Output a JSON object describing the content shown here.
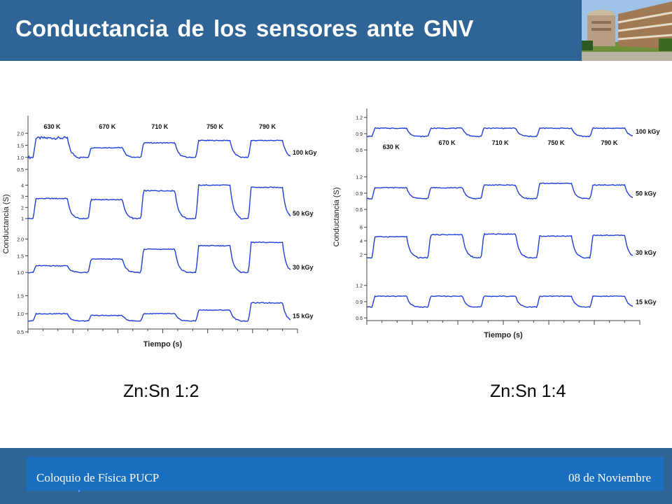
{
  "slide": {
    "title": "Conductancia de los sensores ante GNV",
    "footer_left": "Coloquio de Física PUCP",
    "footer_right": "08 de Noviembre",
    "photo_icon": "building-photo",
    "colors": {
      "header": "#2f6496",
      "footer_bar": "#1a6fc0",
      "trace": "#1f3fd8"
    }
  },
  "chart_data": [
    {
      "type": "line",
      "caption": "Zn:Sn 1:2",
      "xlabel": "Tiempo (s)",
      "ylabel": "Conductancia (S)",
      "temperatures": [
        "630 K",
        "670 K",
        "710 K",
        "750 K",
        "790 K"
      ],
      "panels": [
        {
          "name": "100 kGy",
          "ticks": [
            "2.0",
            "1.5",
            "1.0",
            "0.5"
          ],
          "tick_values": [
            2.0,
            1.5,
            1.0,
            0.5
          ],
          "ylim": [
            0.5,
            2.3
          ],
          "baseline": 1.0,
          "peaks": [
            1.8,
            1.4,
            1.6,
            1.7,
            1.7
          ]
        },
        {
          "name": "50 kGy",
          "ticks": [
            "4",
            "3",
            "2",
            "1"
          ],
          "tick_values": [
            4,
            3,
            2,
            1
          ],
          "ylim": [
            0.7,
            4.6
          ],
          "baseline": 1.0,
          "peaks": [
            2.8,
            2.7,
            3.5,
            4.0,
            3.8
          ]
        },
        {
          "name": "30 kGy",
          "ticks": [
            "2.0",
            "1.5",
            "1.0"
          ],
          "tick_values": [
            2.0,
            1.5,
            1.0
          ],
          "ylim": [
            0.9,
            2.2
          ],
          "baseline": 1.0,
          "peaks": [
            1.2,
            1.4,
            1.7,
            1.8,
            1.9
          ]
        },
        {
          "name": "15 kGy",
          "ticks": [
            "1.5",
            "1.0",
            "0.5"
          ],
          "tick_values": [
            1.5,
            1.0,
            0.5
          ],
          "ylim": [
            0.5,
            1.7
          ],
          "baseline": 0.8,
          "peaks": [
            1.0,
            0.95,
            1.0,
            1.1,
            1.3
          ]
        }
      ]
    },
    {
      "type": "line",
      "caption": "Zn:Sn 1:4",
      "xlabel": "Tiempo (s)",
      "ylabel": "Conductancia (S)",
      "temperatures": [
        "630 K",
        "670 K",
        "710 K",
        "750 K",
        "790 K"
      ],
      "panels": [
        {
          "name": "100 kGy",
          "ticks": [
            "1.2",
            "0.9",
            "0.6"
          ],
          "tick_values": [
            1.2,
            0.9,
            0.6
          ],
          "ylim": [
            0.55,
            1.3
          ],
          "baseline": 0.85,
          "peaks": [
            1.0,
            1.0,
            1.0,
            1.0,
            1.0
          ]
        },
        {
          "name": "50 kGy",
          "ticks": [
            "1.2",
            "0.9",
            "0.6"
          ],
          "tick_values": [
            1.2,
            0.9,
            0.6
          ],
          "ylim": [
            0.55,
            1.3
          ],
          "baseline": 0.8,
          "peaks": [
            1.0,
            1.0,
            1.05,
            1.08,
            1.05
          ]
        },
        {
          "name": "30 kGy",
          "ticks": [
            "6",
            "4",
            "2"
          ],
          "tick_values": [
            6,
            4,
            2
          ],
          "ylim": [
            1.0,
            7.0
          ],
          "baseline": 1.5,
          "peaks": [
            4.6,
            4.9,
            5.0,
            4.7,
            4.8
          ]
        },
        {
          "name": "15 kGy",
          "ticks": [
            "1.2",
            "0.9",
            "0.6"
          ],
          "tick_values": [
            1.2,
            0.9,
            0.6
          ],
          "ylim": [
            0.55,
            1.3
          ],
          "baseline": 0.8,
          "peaks": [
            1.0,
            1.0,
            1.0,
            1.0,
            1.0
          ]
        }
      ]
    }
  ]
}
